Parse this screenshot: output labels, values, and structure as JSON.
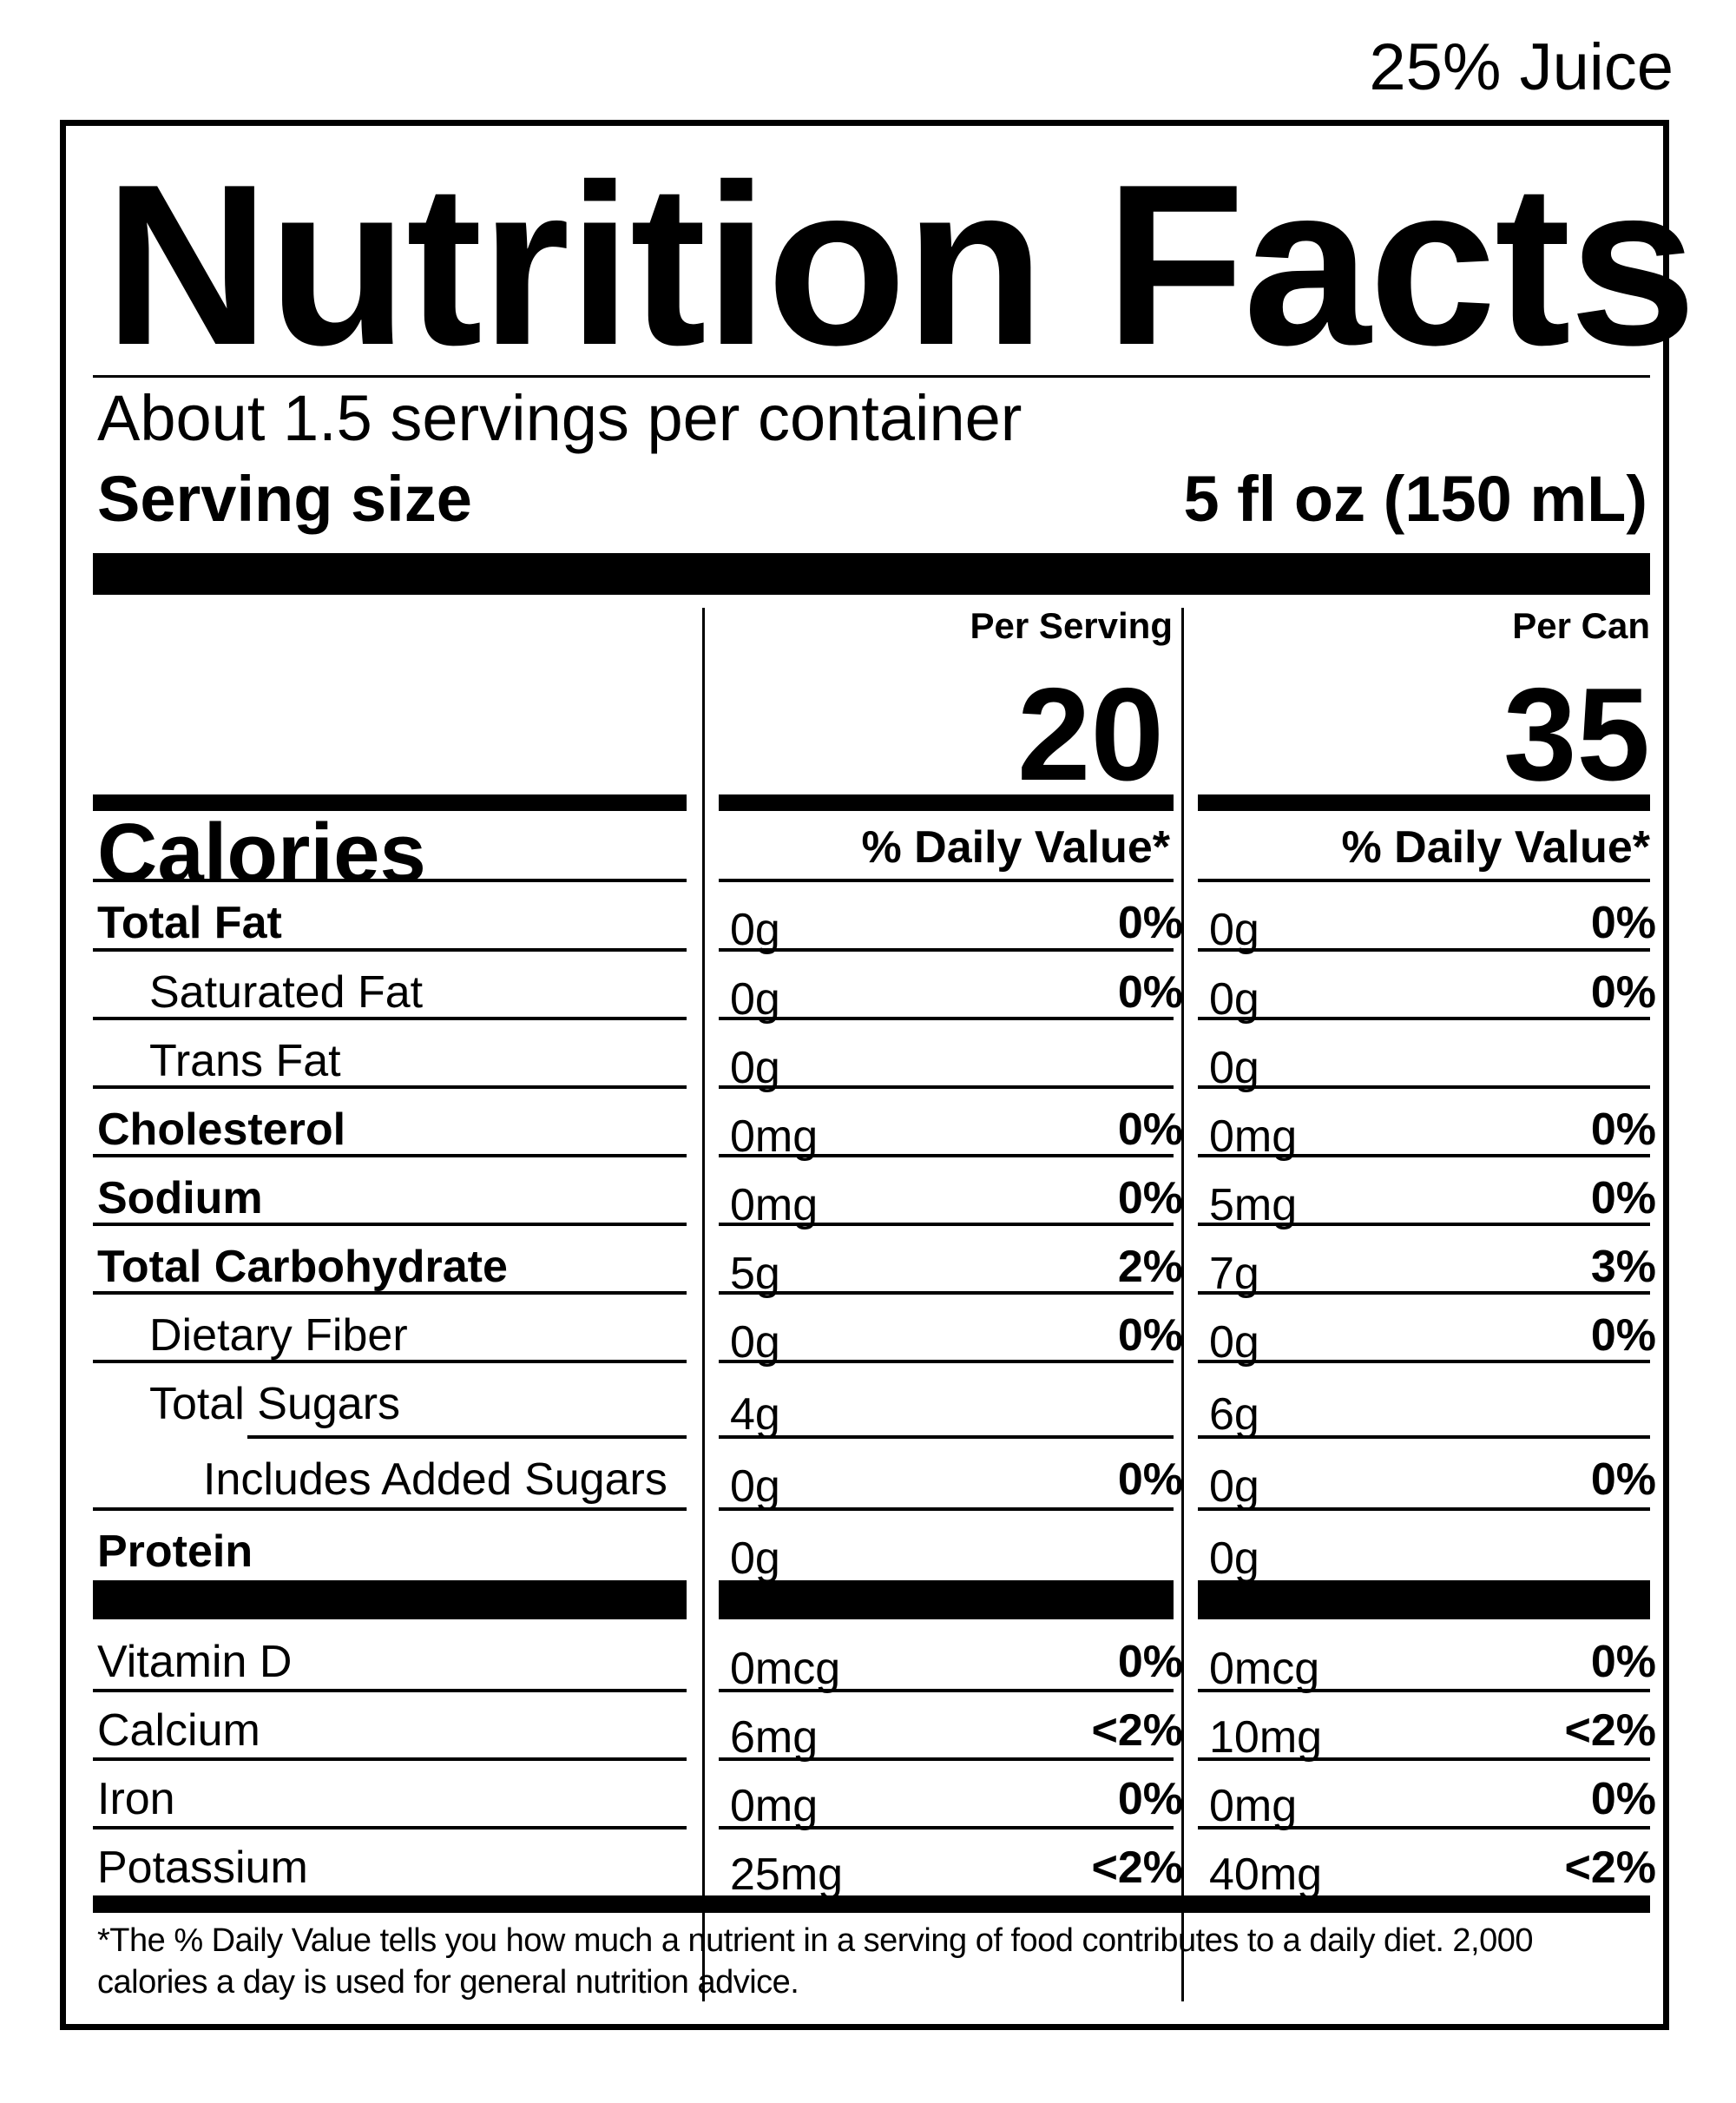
{
  "juice_note": "25% Juice",
  "title": "Nutrition Facts",
  "servings_per_container": "About 1.5 servings per container",
  "serving_size": {
    "label": "Serving size",
    "value": "5 fl oz (150 mL)"
  },
  "calories": {
    "label": "Calories",
    "per_serving_header": "Per Serving",
    "per_can_header": "Per Can",
    "per_serving": "20",
    "per_can": "35"
  },
  "daily_value_header": "% Daily Value*",
  "nutrients": [
    {
      "name": "Total Fat",
      "serving_amount": "0g",
      "serving_dv": "0%",
      "can_amount": "0g",
      "can_dv": "0%"
    },
    {
      "name": "Saturated Fat",
      "serving_amount": "0g",
      "serving_dv": "0%",
      "can_amount": "0g",
      "can_dv": "0%"
    },
    {
      "name": "Trans Fat",
      "serving_amount": "0g",
      "serving_dv": "",
      "can_amount": "0g",
      "can_dv": ""
    },
    {
      "name": "Cholesterol",
      "serving_amount": "0mg",
      "serving_dv": "0%",
      "can_amount": "0mg",
      "can_dv": "0%"
    },
    {
      "name": "Sodium",
      "serving_amount": "0mg",
      "serving_dv": "0%",
      "can_amount": "5mg",
      "can_dv": "0%"
    },
    {
      "name": "Total Carbohydrate",
      "serving_amount": "5g",
      "serving_dv": "2%",
      "can_amount": "7g",
      "can_dv": "3%"
    },
    {
      "name": "Dietary Fiber",
      "serving_amount": "0g",
      "serving_dv": "0%",
      "can_amount": "0g",
      "can_dv": "0%"
    },
    {
      "name": "Total Sugars",
      "serving_amount": "4g",
      "serving_dv": "",
      "can_amount": "6g",
      "can_dv": ""
    },
    {
      "name": "Includes Added Sugars",
      "serving_amount": "0g",
      "serving_dv": "0%",
      "can_amount": "0g",
      "can_dv": "0%"
    },
    {
      "name": "Protein",
      "serving_amount": "0g",
      "serving_dv": "",
      "can_amount": "0g",
      "can_dv": ""
    }
  ],
  "vitamins": [
    {
      "name": "Vitamin D",
      "serving_amount": "0mcg",
      "serving_dv": "0%",
      "can_amount": "0mcg",
      "can_dv": "0%"
    },
    {
      "name": "Calcium",
      "serving_amount": "6mg",
      "serving_dv": "<2%",
      "can_amount": "10mg",
      "can_dv": "<2%"
    },
    {
      "name": "Iron",
      "serving_amount": "0mg",
      "serving_dv": "0%",
      "can_amount": "0mg",
      "can_dv": "0%"
    },
    {
      "name": "Potassium",
      "serving_amount": "25mg",
      "serving_dv": "<2%",
      "can_amount": "40mg",
      "can_dv": "<2%"
    }
  ],
  "footnote": "*The % Daily Value tells you how much a nutrient in a serving of food contributes to a daily diet. 2,000 calories a day is used for general nutrition advice."
}
